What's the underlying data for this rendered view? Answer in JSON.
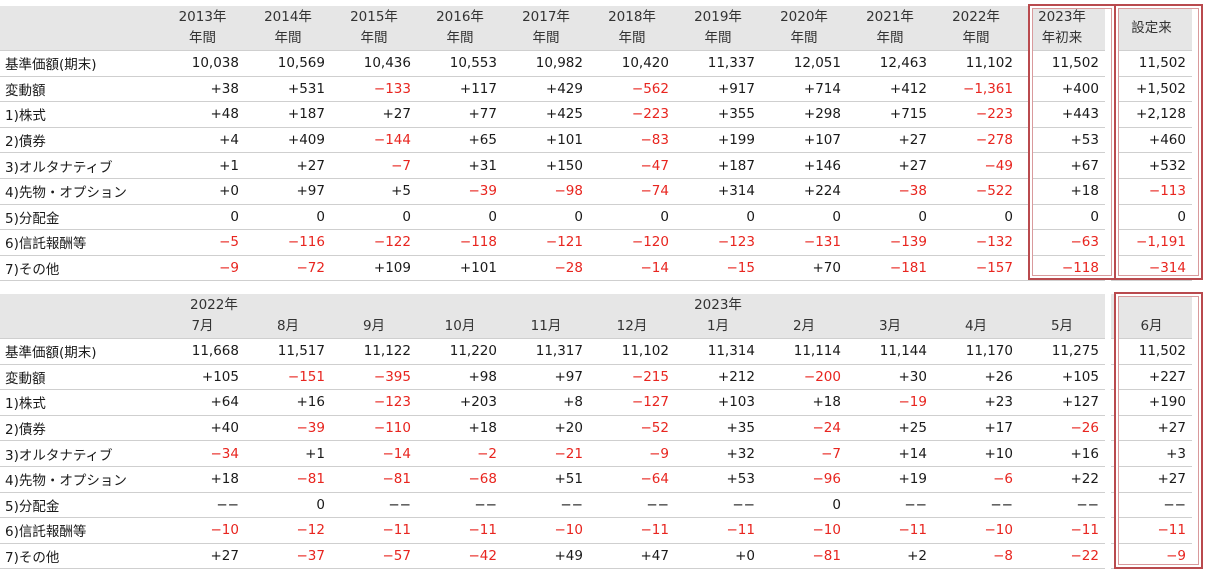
{
  "annual": {
    "header_years": [
      "2013年",
      "2014年",
      "2015年",
      "2016年",
      "2017年",
      "2018年",
      "2019年",
      "2020年",
      "2021年",
      "2022年",
      "2023年",
      ""
    ],
    "header_sub": [
      "年間",
      "年間",
      "年間",
      "年間",
      "年間",
      "年間",
      "年間",
      "年間",
      "年間",
      "年間",
      "年初来",
      "設定来"
    ],
    "rows": [
      {
        "label": "基準価額(期末)",
        "values": [
          "10,038",
          "10,569",
          "10,436",
          "10,553",
          "10,982",
          "10,420",
          "11,337",
          "12,051",
          "12,463",
          "11,102",
          "11,502",
          "11,502"
        ]
      },
      {
        "label": "変動額",
        "values": [
          "+38",
          "+531",
          "−133",
          "+117",
          "+429",
          "−562",
          "+917",
          "+714",
          "+412",
          "−1,361",
          "+400",
          "+1,502"
        ]
      },
      {
        "label": "1)株式",
        "values": [
          "+48",
          "+187",
          "+27",
          "+77",
          "+425",
          "−223",
          "+355",
          "+298",
          "+715",
          "−223",
          "+443",
          "+2,128"
        ]
      },
      {
        "label": "2)債券",
        "values": [
          "+4",
          "+409",
          "−144",
          "+65",
          "+101",
          "−83",
          "+199",
          "+107",
          "+27",
          "−278",
          "+53",
          "+460"
        ]
      },
      {
        "label": "3)オルタナティブ",
        "values": [
          "+1",
          "+27",
          "−7",
          "+31",
          "+150",
          "−47",
          "+187",
          "+146",
          "+27",
          "−49",
          "+67",
          "+532"
        ]
      },
      {
        "label": "4)先物・オプション",
        "values": [
          "+0",
          "+97",
          "+5",
          "−39",
          "−98",
          "−74",
          "+314",
          "+224",
          "−38",
          "−522",
          "+18",
          "−113"
        ]
      },
      {
        "label": "5)分配金",
        "values": [
          "0",
          "0",
          "0",
          "0",
          "0",
          "0",
          "0",
          "0",
          "0",
          "0",
          "0",
          "0"
        ]
      },
      {
        "label": "6)信託報酬等",
        "values": [
          "−5",
          "−116",
          "−122",
          "−118",
          "−121",
          "−120",
          "−123",
          "−131",
          "−139",
          "−132",
          "−63",
          "−1,191"
        ]
      },
      {
        "label": "7)その他",
        "values": [
          "−9",
          "−72",
          "+109",
          "+101",
          "−28",
          "−14",
          "−15",
          "+70",
          "−181",
          "−157",
          "−118",
          "−314"
        ]
      }
    ]
  },
  "monthly": {
    "year_2022": "2022年",
    "year_2023": "2023年",
    "months": [
      "7月",
      "8月",
      "9月",
      "10月",
      "11月",
      "12月",
      "1月",
      "2月",
      "3月",
      "4月",
      "5月",
      "6月"
    ],
    "rows": [
      {
        "label": "基準価額(期末)",
        "values": [
          "11,668",
          "11,517",
          "11,122",
          "11,220",
          "11,317",
          "11,102",
          "11,314",
          "11,114",
          "11,144",
          "11,170",
          "11,275",
          "11,502"
        ]
      },
      {
        "label": "変動額",
        "values": [
          "+105",
          "−151",
          "−395",
          "+98",
          "+97",
          "−215",
          "+212",
          "−200",
          "+30",
          "+26",
          "+105",
          "+227"
        ]
      },
      {
        "label": "1)株式",
        "values": [
          "+64",
          "+16",
          "−123",
          "+203",
          "+8",
          "−127",
          "+103",
          "+18",
          "−19",
          "+23",
          "+127",
          "+190"
        ]
      },
      {
        "label": "2)債券",
        "values": [
          "+40",
          "−39",
          "−110",
          "+18",
          "+20",
          "−52",
          "+35",
          "−24",
          "+25",
          "+17",
          "−26",
          "+27"
        ]
      },
      {
        "label": "3)オルタナティブ",
        "values": [
          "−34",
          "+1",
          "−14",
          "−2",
          "−21",
          "−9",
          "+32",
          "−7",
          "+14",
          "+10",
          "+16",
          "+3"
        ]
      },
      {
        "label": "4)先物・オプション",
        "values": [
          "+18",
          "−81",
          "−81",
          "−68",
          "+51",
          "−64",
          "+53",
          "−96",
          "+19",
          "−6",
          "+22",
          "+27"
        ]
      },
      {
        "label": "5)分配金",
        "values": [
          "−−",
          "0",
          "−−",
          "−−",
          "−−",
          "−−",
          "−−",
          "0",
          "−−",
          "−−",
          "−−",
          "−−"
        ]
      },
      {
        "label": "6)信託報酬等",
        "values": [
          "−10",
          "−12",
          "−11",
          "−11",
          "−10",
          "−11",
          "−11",
          "−10",
          "−11",
          "−10",
          "−11",
          "−11"
        ]
      },
      {
        "label": "7)その他",
        "values": [
          "+27",
          "−37",
          "−57",
          "−42",
          "+49",
          "+47",
          "+0",
          "−81",
          "+2",
          "−8",
          "−22",
          "−9"
        ]
      }
    ]
  },
  "colors": {
    "negative": "#e8251f",
    "highlight_border": "#b94a4e",
    "header_bg": "#e6e6e6"
  }
}
